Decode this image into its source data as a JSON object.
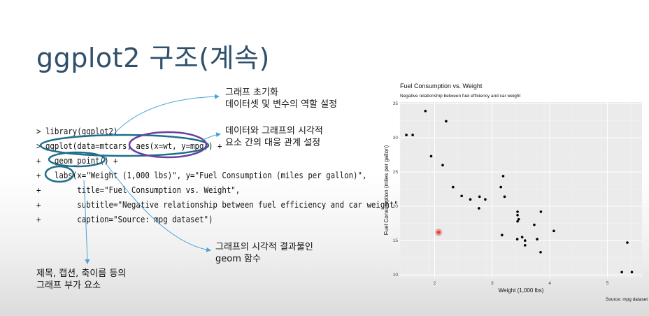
{
  "slide": {
    "title": "ggplot2 구조(계속)"
  },
  "code_lines": [
    "> library(ggplot2)",
    "> ggplot(data=mtcars, aes(x=wt, y=mpg)) +",
    "+   geom_point() +",
    "+   labs(x=\"Weight (1,000 lbs)\", y=\"Fuel Consumption (miles per gallon)\",",
    "+        title=\"Fuel Consumption vs. Weight\",",
    "+        subtitle=\"Negative relationship between fuel efficiency and car weight\",",
    "+        caption=\"Source: mpg dataset\")"
  ],
  "notes": {
    "init_line1": "그래프 초기화",
    "init_line2": "데이터셋 및 변수의 역할 설정",
    "aes_line1": "데이터와 그래프의 시각적",
    "aes_line2": "요소 간의 대응 관계 설정",
    "geom_line1": "그래프의 시각적 결과물인",
    "geom_line2": "geom 함수",
    "labs_line1": "제목, 캡션, 축이름 등의",
    "labs_line2": "그래프 부가 요소"
  },
  "colors": {
    "title": "#2f4f6a",
    "circle_blue": "#1f6f8b",
    "circle_purple": "#6b3fa0",
    "arrow": "#4aa3d8",
    "panel_bg": "#ebebeb",
    "grid": "#ffffff",
    "highlight": "#e53935"
  },
  "chart_data": {
    "type": "scatter",
    "title": "Fuel Consumption vs. Weight",
    "subtitle": "Negative relationship between fuel efficiency and car weight",
    "xlabel": "Weight (1,000 lbs)",
    "ylabel": "Fuel Consumption (miles per gallon)",
    "caption": "Source: mpg dataset",
    "xlim": [
      1.4,
      5.6
    ],
    "ylim": [
      9.5,
      35.2
    ],
    "xticks": [
      2,
      3,
      4,
      5
    ],
    "yticks": [
      10,
      15,
      20,
      25,
      30,
      35
    ],
    "grid": true,
    "highlighted_point": {
      "x": 2.07,
      "y": 16.2
    },
    "points": [
      {
        "x": 1.51,
        "y": 30.4
      },
      {
        "x": 1.62,
        "y": 30.4
      },
      {
        "x": 1.84,
        "y": 33.9
      },
      {
        "x": 1.94,
        "y": 27.3
      },
      {
        "x": 2.14,
        "y": 26.0
      },
      {
        "x": 2.2,
        "y": 32.4
      },
      {
        "x": 2.32,
        "y": 22.8
      },
      {
        "x": 2.47,
        "y": 21.5
      },
      {
        "x": 2.62,
        "y": 21.0
      },
      {
        "x": 2.77,
        "y": 19.7
      },
      {
        "x": 2.78,
        "y": 21.4
      },
      {
        "x": 2.88,
        "y": 21.0
      },
      {
        "x": 3.15,
        "y": 22.8
      },
      {
        "x": 3.17,
        "y": 15.8
      },
      {
        "x": 3.19,
        "y": 24.4
      },
      {
        "x": 3.215,
        "y": 21.4
      },
      {
        "x": 3.435,
        "y": 15.2
      },
      {
        "x": 3.44,
        "y": 18.7
      },
      {
        "x": 3.44,
        "y": 19.2
      },
      {
        "x": 3.44,
        "y": 17.8
      },
      {
        "x": 3.46,
        "y": 18.1
      },
      {
        "x": 3.52,
        "y": 15.5
      },
      {
        "x": 3.57,
        "y": 14.3
      },
      {
        "x": 3.57,
        "y": 15.0
      },
      {
        "x": 3.73,
        "y": 17.3
      },
      {
        "x": 3.78,
        "y": 15.2
      },
      {
        "x": 3.84,
        "y": 13.3
      },
      {
        "x": 3.845,
        "y": 19.2
      },
      {
        "x": 4.07,
        "y": 16.4
      },
      {
        "x": 5.25,
        "y": 10.4
      },
      {
        "x": 5.345,
        "y": 14.7
      },
      {
        "x": 5.424,
        "y": 10.4
      }
    ]
  }
}
